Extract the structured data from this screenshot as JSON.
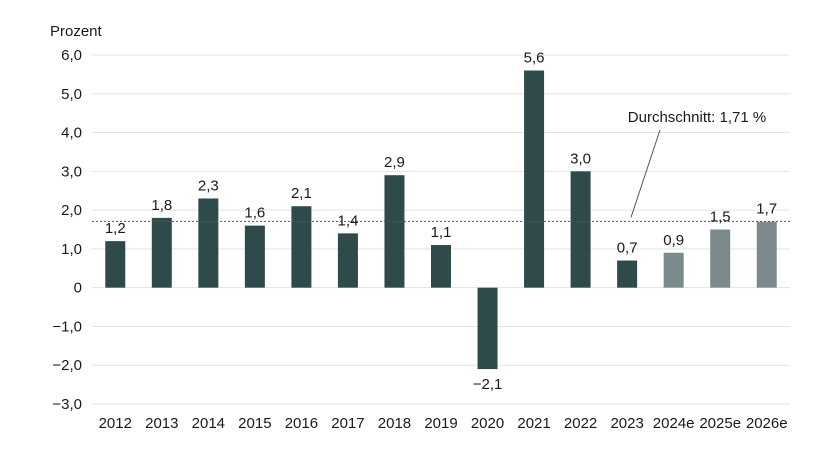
{
  "chart_data": {
    "type": "bar",
    "ylabel": "Prozent",
    "ylim": [
      -3.0,
      6.0
    ],
    "yticks": [
      6.0,
      5.0,
      4.0,
      3.0,
      2.0,
      1.0,
      0,
      -1.0,
      -2.0,
      -3.0
    ],
    "ytick_labels": [
      "6,0",
      "5,0",
      "4,0",
      "3,0",
      "2,0",
      "1,0",
      "0",
      "−1,0",
      "−2,0",
      "−3,0"
    ],
    "grid": true,
    "categories": [
      "2012",
      "2013",
      "2014",
      "2015",
      "2016",
      "2017",
      "2018",
      "2019",
      "2020",
      "2021",
      "2022",
      "2023",
      "2024e",
      "2025e",
      "2026e"
    ],
    "values": [
      1.2,
      1.8,
      2.3,
      1.6,
      2.1,
      1.4,
      2.9,
      1.1,
      -2.1,
      5.6,
      3.0,
      0.7,
      0.9,
      1.5,
      1.7
    ],
    "value_labels": [
      "1,2",
      "1,8",
      "2,3",
      "1,6",
      "2,1",
      "1,4",
      "2,9",
      "1,1",
      "−2,1",
      "5,6",
      "3,0",
      "0,7",
      "0,9",
      "1,5",
      "1,7"
    ],
    "estimate": [
      false,
      false,
      false,
      false,
      false,
      false,
      false,
      false,
      false,
      false,
      false,
      false,
      true,
      true,
      true
    ],
    "colors": {
      "actual": "#2e4a4a",
      "estimate": "#7b8a8b",
      "grid": "#e3e3e3",
      "text": "#1a1a1a",
      "avg_line": "#555555"
    },
    "average": {
      "value": 1.71,
      "label": "Durchschnitt: 1,71 %"
    }
  }
}
